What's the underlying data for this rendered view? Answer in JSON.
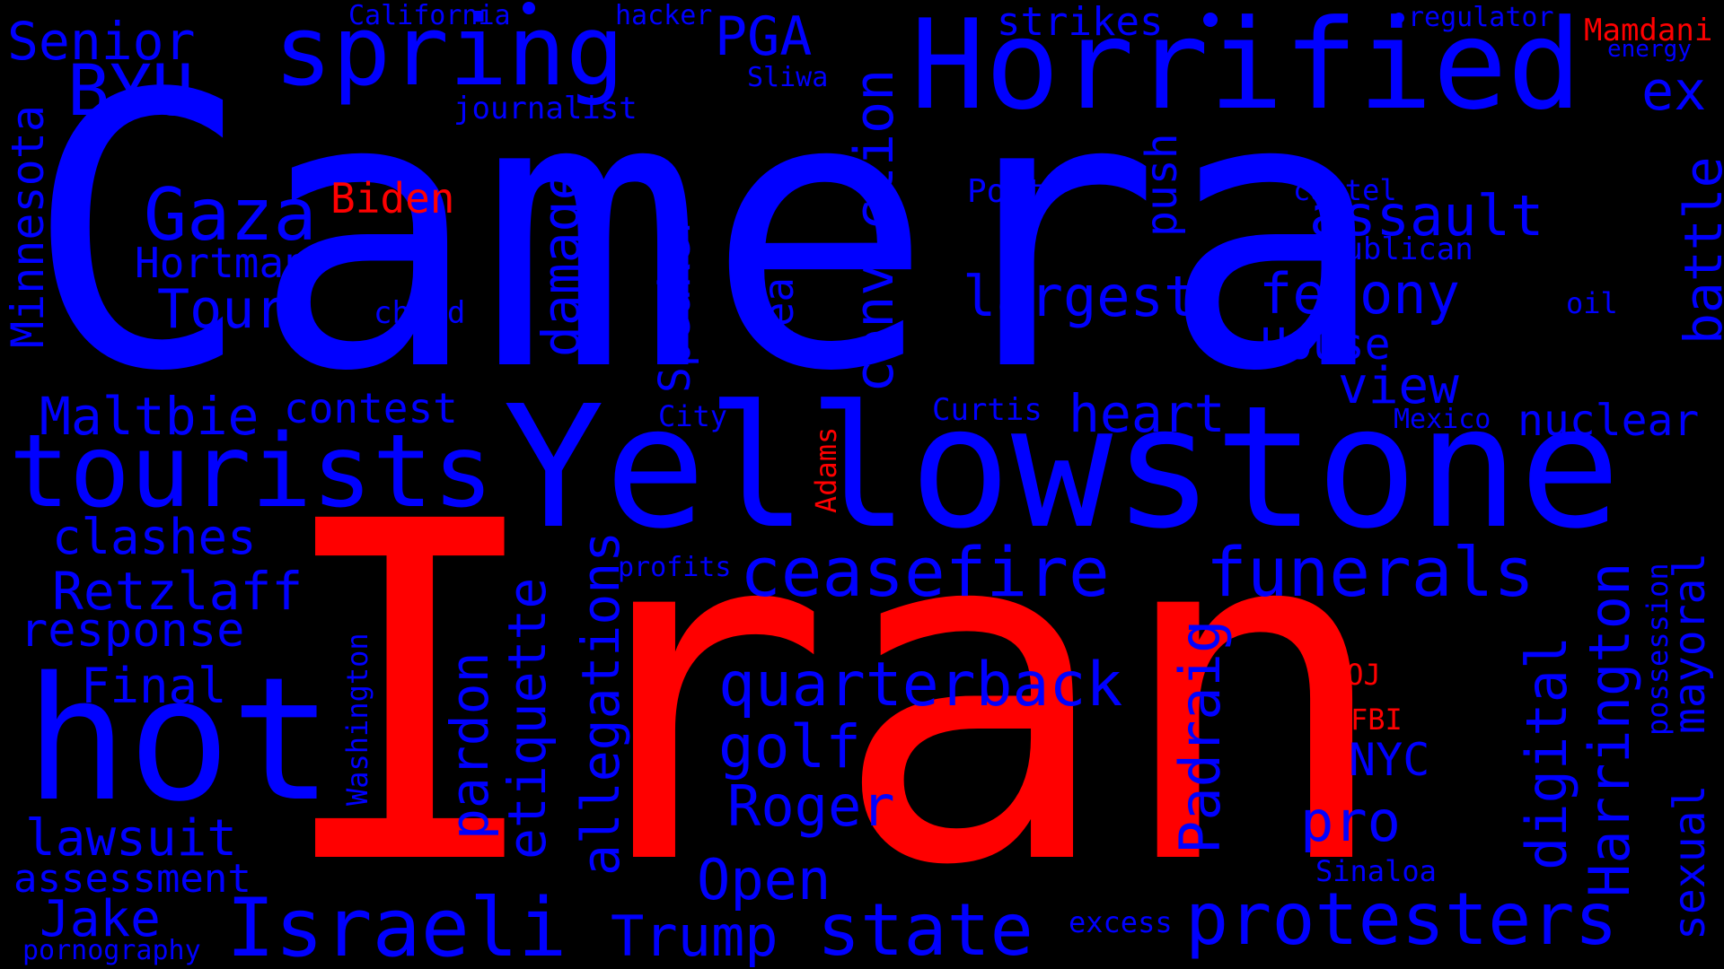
{
  "colors": {
    "background": "#000000",
    "blue": "#0000ff",
    "red": "#ff0000"
  },
  "words": [
    {
      "text": "Camera",
      "color": "blue"
    },
    {
      "text": "Iran",
      "color": "red"
    },
    {
      "text": "Yellowstone",
      "color": "blue"
    },
    {
      "text": "Horrified",
      "color": "blue"
    },
    {
      "text": "tourists",
      "color": "blue"
    },
    {
      "text": "hot",
      "color": "blue"
    },
    {
      "text": "spring",
      "color": "blue"
    },
    {
      "text": "ceasefire",
      "color": "blue"
    },
    {
      "text": "funerals",
      "color": "blue"
    },
    {
      "text": "protesters",
      "color": "blue"
    },
    {
      "text": "Israeli",
      "color": "blue"
    },
    {
      "text": "state",
      "color": "blue"
    },
    {
      "text": "Trump",
      "color": "blue"
    },
    {
      "text": "quarterback",
      "color": "blue"
    },
    {
      "text": "Gaza",
      "color": "blue"
    },
    {
      "text": "BYU",
      "color": "blue"
    },
    {
      "text": "Senior",
      "color": "blue"
    },
    {
      "text": "PGA",
      "color": "blue"
    },
    {
      "text": "Biden",
      "color": "red"
    },
    {
      "text": "Hortman",
      "color": "blue"
    },
    {
      "text": "Tour",
      "color": "blue"
    },
    {
      "text": "Maltbie",
      "color": "blue"
    },
    {
      "text": "contest",
      "color": "blue"
    },
    {
      "text": "clashes",
      "color": "blue"
    },
    {
      "text": "Retzlaff",
      "color": "blue"
    },
    {
      "text": "response",
      "color": "blue"
    },
    {
      "text": "Final",
      "color": "blue"
    },
    {
      "text": "lawsuit",
      "color": "blue"
    },
    {
      "text": "assessment",
      "color": "blue"
    },
    {
      "text": "Jake",
      "color": "blue"
    },
    {
      "text": "pornography",
      "color": "blue"
    },
    {
      "text": "California",
      "color": "blue"
    },
    {
      "text": "hacker",
      "color": "blue"
    },
    {
      "text": "journalist",
      "color": "blue"
    },
    {
      "text": "Sliwa",
      "color": "blue"
    },
    {
      "text": "strikes",
      "color": "blue"
    },
    {
      "text": "regulator",
      "color": "blue"
    },
    {
      "text": "energy",
      "color": "blue"
    },
    {
      "text": "Mamdani",
      "color": "red"
    },
    {
      "text": "ex",
      "color": "blue"
    },
    {
      "text": "assault",
      "color": "blue"
    },
    {
      "text": "Post",
      "color": "blue"
    },
    {
      "text": "cartel",
      "color": "blue"
    },
    {
      "text": "Republican",
      "color": "blue"
    },
    {
      "text": "felony",
      "color": "blue"
    },
    {
      "text": "largest",
      "color": "blue"
    },
    {
      "text": "House",
      "color": "blue"
    },
    {
      "text": "oil",
      "color": "blue"
    },
    {
      "text": "view",
      "color": "blue"
    },
    {
      "text": "heart",
      "color": "blue"
    },
    {
      "text": "Curtis",
      "color": "blue"
    },
    {
      "text": "City",
      "color": "blue"
    },
    {
      "text": "Mexico",
      "color": "blue"
    },
    {
      "text": "nuclear",
      "color": "blue"
    },
    {
      "text": "child",
      "color": "blue"
    },
    {
      "text": "profits",
      "color": "blue"
    },
    {
      "text": "golf",
      "color": "blue"
    },
    {
      "text": "Roger",
      "color": "blue"
    },
    {
      "text": "Open",
      "color": "blue"
    },
    {
      "text": "pro",
      "color": "blue"
    },
    {
      "text": "NYC",
      "color": "blue"
    },
    {
      "text": "DOJ",
      "color": "red"
    },
    {
      "text": "FBI",
      "color": "red"
    },
    {
      "text": "Sinaloa",
      "color": "blue"
    },
    {
      "text": "excess",
      "color": "blue"
    },
    {
      "text": "Minnesota",
      "color": "blue"
    },
    {
      "text": "damage",
      "color": "blue"
    },
    {
      "text": "conviction",
      "color": "blue"
    },
    {
      "text": "deal",
      "color": "blue"
    },
    {
      "text": "Speaker",
      "color": "blue"
    },
    {
      "text": "push",
      "color": "blue"
    },
    {
      "text": "battle",
      "color": "blue"
    },
    {
      "text": "Adams",
      "color": "red"
    },
    {
      "text": "allegations",
      "color": "blue"
    },
    {
      "text": "etiquette",
      "color": "blue"
    },
    {
      "text": "pardon",
      "color": "blue"
    },
    {
      "text": "Washington",
      "color": "blue"
    },
    {
      "text": "Padraig",
      "color": "blue"
    },
    {
      "text": "digital",
      "color": "blue"
    },
    {
      "text": "Harrington",
      "color": "blue"
    },
    {
      "text": "possession",
      "color": "blue"
    },
    {
      "text": "mayoral",
      "color": "blue"
    },
    {
      "text": "sexual",
      "color": "blue"
    }
  ]
}
